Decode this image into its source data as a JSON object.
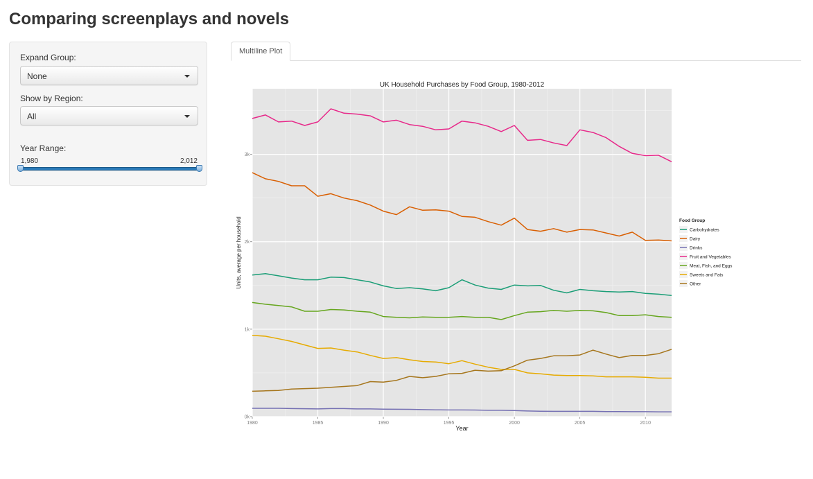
{
  "app": {
    "title": "Comparing screenplays and novels"
  },
  "sidebar": {
    "expand_group": {
      "label": "Expand Group:",
      "value": "None"
    },
    "region": {
      "label": "Show by Region:",
      "value": "All"
    },
    "year_range": {
      "label": "Year Range:",
      "min_label": "1,980",
      "max_label": "2,012",
      "min": 1980,
      "max": 2012,
      "selected": [
        1980,
        2012
      ]
    }
  },
  "tabs": [
    {
      "label": "Multiline Plot",
      "active": true
    }
  ],
  "chart_data": {
    "type": "line",
    "title": "UK Household Purchases by Food Group, 1980-2012",
    "xlabel": "Year",
    "ylabel": "Units, average per household",
    "xlim": [
      1980,
      2012
    ],
    "ylim": [
      0,
      3750
    ],
    "xticks": [
      1980,
      1985,
      1990,
      1995,
      2000,
      2005,
      2010
    ],
    "yticks": [
      0,
      1000,
      2000,
      3000
    ],
    "ytick_labels": [
      "0k",
      "1k",
      "2k",
      "3k"
    ],
    "grid": true,
    "legend": {
      "title": "Food Group",
      "placement": "right"
    },
    "x": [
      1980,
      1981,
      1982,
      1983,
      1984,
      1985,
      1986,
      1987,
      1988,
      1989,
      1990,
      1991,
      1992,
      1993,
      1994,
      1995,
      1996,
      1997,
      1998,
      1999,
      2000,
      2001,
      2002,
      2003,
      2004,
      2005,
      2006,
      2007,
      2008,
      2009,
      2010,
      2011,
      2012
    ],
    "series": [
      {
        "name": "Carbohydrates",
        "color": "#1b9e77",
        "values": [
          1620,
          1635,
          1610,
          1585,
          1565,
          1565,
          1595,
          1590,
          1565,
          1540,
          1495,
          1465,
          1475,
          1460,
          1440,
          1475,
          1565,
          1505,
          1470,
          1455,
          1505,
          1495,
          1500,
          1445,
          1415,
          1455,
          1440,
          1430,
          1425,
          1430,
          1410,
          1400,
          1385
        ]
      },
      {
        "name": "Dairy",
        "color": "#d95f02",
        "values": [
          2790,
          2720,
          2690,
          2640,
          2640,
          2520,
          2550,
          2500,
          2470,
          2420,
          2350,
          2310,
          2400,
          2360,
          2365,
          2350,
          2290,
          2280,
          2230,
          2190,
          2270,
          2140,
          2120,
          2150,
          2110,
          2140,
          2135,
          2100,
          2065,
          2110,
          2015,
          2020,
          2010
        ]
      },
      {
        "name": "Drinks",
        "color": "#7570b3",
        "values": [
          95,
          95,
          95,
          92,
          90,
          88,
          92,
          92,
          88,
          88,
          86,
          84,
          83,
          80,
          78,
          76,
          76,
          75,
          72,
          72,
          70,
          64,
          62,
          60,
          60,
          60,
          60,
          58,
          58,
          56,
          56,
          55,
          55
        ]
      },
      {
        "name": "Fruit and Vegetables",
        "color": "#e7298a",
        "values": [
          3410,
          3450,
          3370,
          3380,
          3330,
          3370,
          3520,
          3470,
          3460,
          3440,
          3370,
          3390,
          3340,
          3320,
          3280,
          3290,
          3380,
          3360,
          3320,
          3260,
          3330,
          3160,
          3170,
          3130,
          3100,
          3280,
          3250,
          3190,
          3090,
          3010,
          2985,
          2990,
          2915
        ]
      },
      {
        "name": "Meat, Fish, and Eggs",
        "color": "#66a61e",
        "values": [
          1305,
          1285,
          1270,
          1255,
          1205,
          1205,
          1225,
          1220,
          1205,
          1195,
          1145,
          1135,
          1130,
          1140,
          1135,
          1135,
          1145,
          1135,
          1135,
          1110,
          1155,
          1195,
          1200,
          1215,
          1205,
          1215,
          1210,
          1190,
          1155,
          1155,
          1165,
          1145,
          1135
        ]
      },
      {
        "name": "Sweets and Fats",
        "color": "#e6ab02",
        "values": [
          930,
          920,
          890,
          860,
          820,
          780,
          785,
          760,
          740,
          700,
          665,
          675,
          650,
          630,
          625,
          605,
          640,
          600,
          565,
          540,
          540,
          500,
          490,
          475,
          470,
          470,
          465,
          455,
          455,
          455,
          450,
          440,
          440
        ]
      },
      {
        "name": "Other",
        "color": "#a6761d",
        "values": [
          290,
          295,
          300,
          315,
          320,
          325,
          335,
          345,
          355,
          400,
          395,
          415,
          460,
          445,
          460,
          490,
          495,
          530,
          520,
          525,
          580,
          645,
          665,
          695,
          695,
          705,
          760,
          715,
          675,
          700,
          700,
          720,
          770
        ]
      }
    ]
  }
}
